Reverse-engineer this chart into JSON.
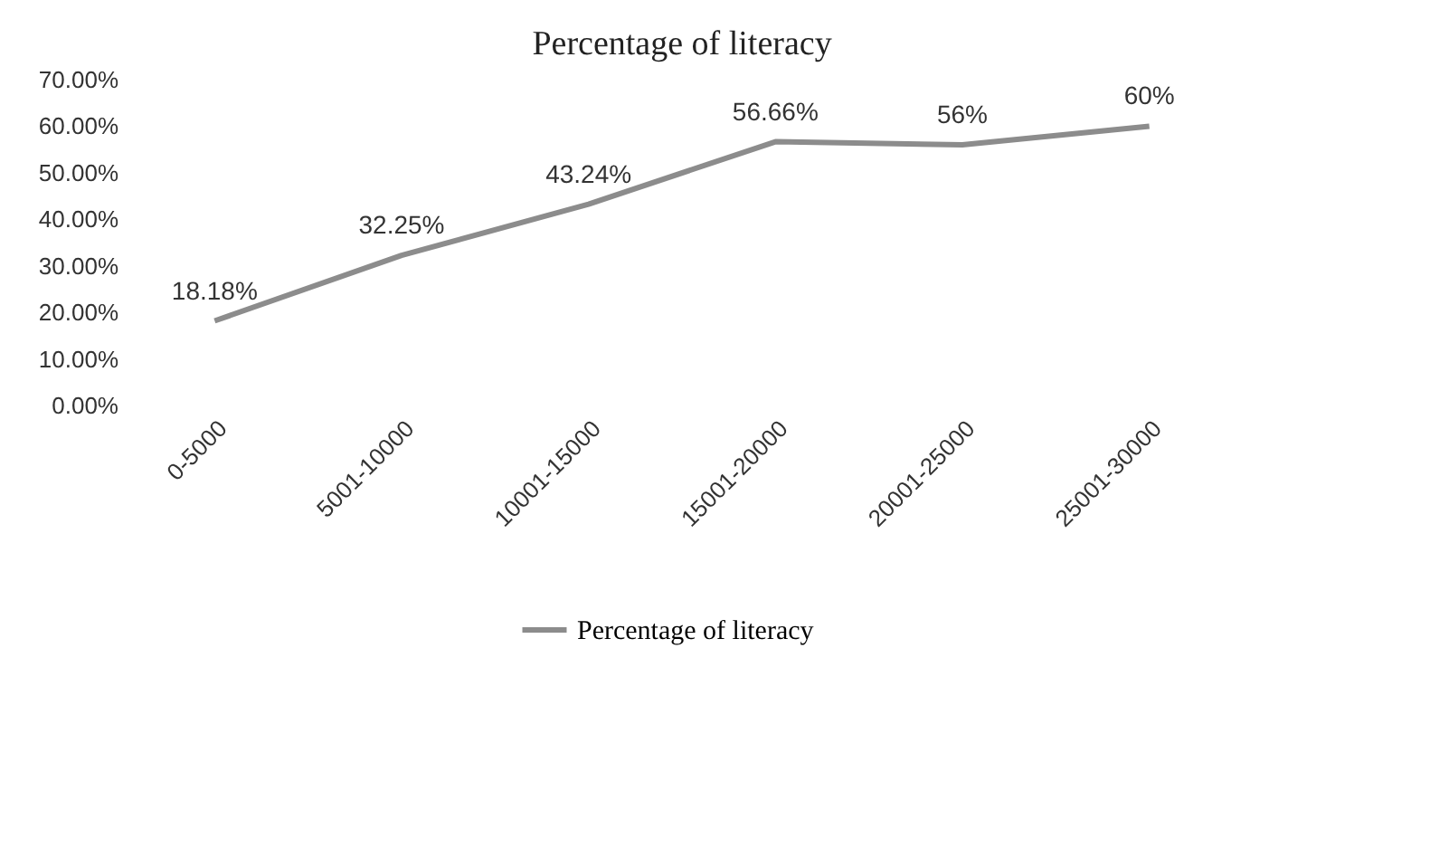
{
  "chart_data": {
    "type": "line",
    "title": "Percentage of literacy",
    "categories": [
      "0-5000",
      "5001-10000",
      "10001-15000",
      "15001-20000",
      "20001-25000",
      "25001-30000"
    ],
    "series": [
      {
        "name": "Percentage of literacy",
        "color": "#8c8c8c",
        "values": [
          18.18,
          32.25,
          43.24,
          56.66,
          56,
          60
        ],
        "value_labels": [
          "18.18%",
          "32.25%",
          "43.24%",
          "56.66%",
          "56%",
          "60%"
        ]
      }
    ],
    "ylim": [
      0,
      70
    ],
    "yticks": [
      {
        "value": 0,
        "label": "0.00%"
      },
      {
        "value": 10,
        "label": "10.00%"
      },
      {
        "value": 20,
        "label": "20.00%"
      },
      {
        "value": 30,
        "label": "30.00%"
      },
      {
        "value": 40,
        "label": "40.00%"
      },
      {
        "value": 50,
        "label": "50.00%"
      },
      {
        "value": 60,
        "label": "60.00%"
      },
      {
        "value": 70,
        "label": "70.00%"
      }
    ],
    "grid": false,
    "legend": "bottom",
    "marker": "none",
    "line_style": "solid"
  }
}
